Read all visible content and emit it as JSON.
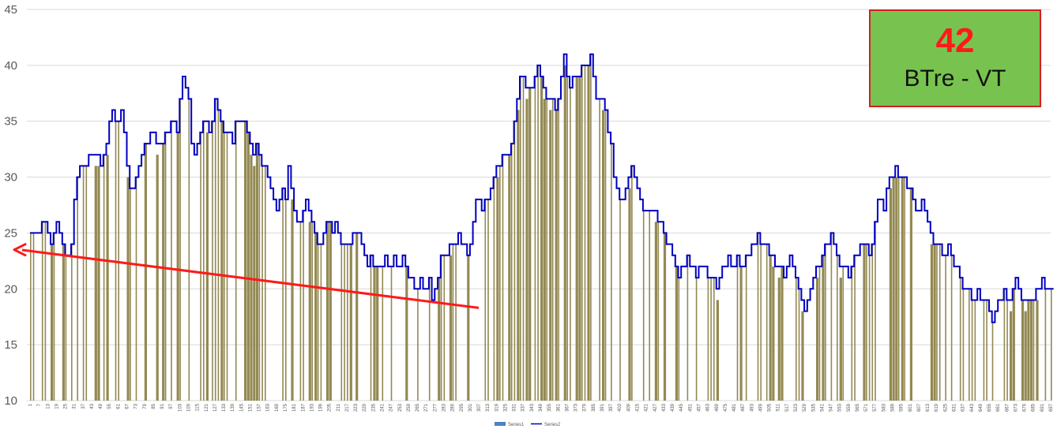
{
  "badge": {
    "value": "42",
    "label": "BTre - VT"
  },
  "legend": {
    "series1": "Series1",
    "series2": "Series2"
  },
  "colors": {
    "bar": "#938953",
    "line": "#0000c0",
    "arrow": "#ff1a1a",
    "grid": "#d9d9d9",
    "legend_bar": "#4f81bd"
  },
  "chart_data": {
    "type": "bar",
    "ylim": [
      10,
      45
    ],
    "yticks": [
      10,
      15,
      20,
      25,
      30,
      35,
      40,
      45
    ],
    "x_start": 1,
    "x_step": 6,
    "x_count": 117,
    "series": [
      {
        "name": "Series1",
        "type": "bar",
        "x_start": 1,
        "x_step": 2,
        "count": 349,
        "note_shape": "bars follow Series2 profile with gaps"
      },
      {
        "name": "Series2",
        "type": "line",
        "x_step": 2,
        "keypoints": [
          [
            1,
            25
          ],
          [
            9,
            25
          ],
          [
            13,
            27
          ],
          [
            19,
            24
          ],
          [
            25,
            26
          ],
          [
            31,
            24
          ],
          [
            35,
            23
          ],
          [
            39,
            24
          ],
          [
            43,
            29
          ],
          [
            47,
            31
          ],
          [
            53,
            31
          ],
          [
            57,
            32
          ],
          [
            63,
            32
          ],
          [
            67,
            31
          ],
          [
            73,
            34
          ],
          [
            77,
            36
          ],
          [
            81,
            34
          ],
          [
            85,
            36
          ],
          [
            89,
            33
          ],
          [
            93,
            29
          ],
          [
            97,
            29
          ],
          [
            101,
            31
          ],
          [
            105,
            32
          ],
          [
            109,
            33
          ],
          [
            113,
            34
          ],
          [
            119,
            33
          ],
          [
            123,
            33
          ],
          [
            129,
            34
          ],
          [
            133,
            35
          ],
          [
            137,
            34
          ],
          [
            141,
            38
          ],
          [
            143,
            39
          ],
          [
            147,
            38
          ],
          [
            149,
            36
          ],
          [
            151,
            33
          ],
          [
            155,
            32
          ],
          [
            159,
            34
          ],
          [
            163,
            35
          ],
          [
            167,
            34
          ],
          [
            171,
            36
          ],
          [
            173,
            37
          ],
          [
            177,
            36
          ],
          [
            181,
            34
          ],
          [
            185,
            34
          ],
          [
            189,
            33
          ],
          [
            191,
            35
          ],
          [
            197,
            35
          ],
          [
            203,
            34
          ],
          [
            207,
            32
          ],
          [
            211,
            33
          ],
          [
            215,
            31
          ],
          [
            219,
            31
          ],
          [
            223,
            30
          ],
          [
            227,
            28
          ],
          [
            231,
            27
          ],
          [
            235,
            29
          ],
          [
            239,
            28
          ],
          [
            241,
            31
          ],
          [
            245,
            27
          ],
          [
            249,
            26
          ],
          [
            253,
            26
          ],
          [
            257,
            28
          ],
          [
            261,
            26
          ],
          [
            265,
            25
          ],
          [
            269,
            24
          ],
          [
            273,
            25
          ],
          [
            277,
            26
          ],
          [
            281,
            25
          ],
          [
            285,
            26
          ],
          [
            289,
            24
          ],
          [
            293,
            24
          ],
          [
            297,
            24
          ],
          [
            301,
            25
          ],
          [
            305,
            25
          ],
          [
            309,
            24
          ],
          [
            313,
            22
          ],
          [
            317,
            23
          ],
          [
            321,
            22
          ],
          [
            325,
            22
          ],
          [
            331,
            23
          ],
          [
            335,
            22
          ],
          [
            339,
            23
          ],
          [
            343,
            22
          ],
          [
            347,
            23
          ],
          [
            351,
            21
          ],
          [
            355,
            21
          ],
          [
            359,
            20
          ],
          [
            363,
            21
          ],
          [
            367,
            20
          ],
          [
            371,
            21
          ],
          [
            375,
            19
          ],
          [
            379,
            21
          ],
          [
            383,
            23
          ],
          [
            387,
            23
          ],
          [
            391,
            24
          ],
          [
            395,
            24
          ],
          [
            399,
            25
          ],
          [
            403,
            24
          ],
          [
            407,
            23
          ],
          [
            411,
            25
          ],
          [
            413,
            27
          ],
          [
            417,
            28
          ],
          [
            421,
            27
          ],
          [
            425,
            28
          ],
          [
            429,
            29
          ],
          [
            433,
            31
          ],
          [
            437,
            31
          ],
          [
            441,
            32
          ],
          [
            445,
            32
          ],
          [
            449,
            34
          ],
          [
            453,
            37
          ],
          [
            457,
            40
          ],
          [
            461,
            38
          ],
          [
            465,
            38
          ],
          [
            469,
            39
          ],
          [
            473,
            40
          ],
          [
            477,
            38
          ],
          [
            481,
            37
          ],
          [
            485,
            37
          ],
          [
            489,
            36
          ],
          [
            493,
            38
          ],
          [
            497,
            41
          ],
          [
            501,
            38
          ],
          [
            505,
            39
          ],
          [
            509,
            39
          ],
          [
            513,
            40
          ],
          [
            517,
            40
          ],
          [
            521,
            41
          ],
          [
            525,
            39
          ],
          [
            527,
            37
          ],
          [
            531,
            37
          ],
          [
            535,
            36
          ],
          [
            537,
            34
          ],
          [
            539,
            35
          ],
          [
            541,
            32
          ],
          [
            545,
            29
          ],
          [
            549,
            28
          ],
          [
            553,
            28
          ],
          [
            557,
            30
          ],
          [
            561,
            31
          ],
          [
            565,
            29
          ],
          [
            569,
            27
          ],
          [
            573,
            27
          ],
          [
            577,
            27
          ],
          [
            581,
            27
          ],
          [
            585,
            26
          ],
          [
            589,
            25
          ],
          [
            593,
            24
          ],
          [
            597,
            23
          ],
          [
            601,
            22
          ],
          [
            603,
            21
          ],
          [
            607,
            22
          ],
          [
            611,
            23
          ],
          [
            615,
            22
          ],
          [
            619,
            21
          ],
          [
            623,
            22
          ],
          [
            627,
            22
          ],
          [
            631,
            21
          ],
          [
            635,
            21
          ],
          [
            637,
            20
          ],
          [
            641,
            21
          ],
          [
            645,
            22
          ],
          [
            649,
            23
          ],
          [
            653,
            22
          ],
          [
            657,
            23
          ],
          [
            661,
            22
          ],
          [
            665,
            23
          ],
          [
            669,
            23
          ],
          [
            673,
            24
          ],
          [
            677,
            25
          ],
          [
            681,
            24
          ],
          [
            685,
            24
          ],
          [
            689,
            23
          ],
          [
            693,
            22
          ],
          [
            697,
            22
          ],
          [
            701,
            21
          ],
          [
            705,
            23
          ],
          [
            709,
            22
          ],
          [
            713,
            21
          ],
          [
            717,
            19
          ],
          [
            721,
            18
          ],
          [
            725,
            20
          ],
          [
            729,
            21
          ],
          [
            733,
            22
          ],
          [
            737,
            23
          ],
          [
            741,
            24
          ],
          [
            745,
            25
          ],
          [
            749,
            24
          ],
          [
            753,
            22
          ],
          [
            757,
            22
          ],
          [
            761,
            21
          ],
          [
            765,
            23
          ],
          [
            769,
            23
          ],
          [
            773,
            24
          ],
          [
            777,
            24
          ],
          [
            781,
            23
          ],
          [
            785,
            26
          ],
          [
            789,
            28
          ],
          [
            793,
            27
          ],
          [
            797,
            29
          ],
          [
            801,
            30
          ],
          [
            805,
            31
          ],
          [
            809,
            30
          ],
          [
            813,
            30
          ],
          [
            817,
            29
          ],
          [
            821,
            28
          ],
          [
            825,
            27
          ],
          [
            829,
            28
          ],
          [
            833,
            26
          ],
          [
            837,
            25
          ],
          [
            841,
            24
          ],
          [
            845,
            24
          ],
          [
            849,
            23
          ],
          [
            853,
            24
          ],
          [
            857,
            23
          ],
          [
            861,
            22
          ],
          [
            865,
            21
          ],
          [
            869,
            20
          ],
          [
            871,
            19
          ],
          [
            873,
            20
          ],
          [
            877,
            19
          ],
          [
            881,
            20
          ],
          [
            885,
            19
          ],
          [
            889,
            19
          ],
          [
            891,
            18
          ],
          [
            893,
            17
          ],
          [
            897,
            18
          ],
          [
            901,
            19
          ],
          [
            905,
            20
          ],
          [
            909,
            19
          ],
          [
            913,
            20
          ],
          [
            917,
            21
          ],
          [
            921,
            19
          ],
          [
            925,
            19
          ],
          [
            929,
            19
          ],
          [
            933,
            19
          ],
          [
            937,
            20
          ],
          [
            941,
            21
          ],
          [
            945,
            20
          ],
          [
            949,
            20
          ]
        ]
      }
    ],
    "annotations": [
      {
        "type": "arrow",
        "from": [
          307,
          18.3
        ],
        "to": [
          1,
          23.5
        ],
        "color": "#ff1a1a"
      }
    ]
  }
}
